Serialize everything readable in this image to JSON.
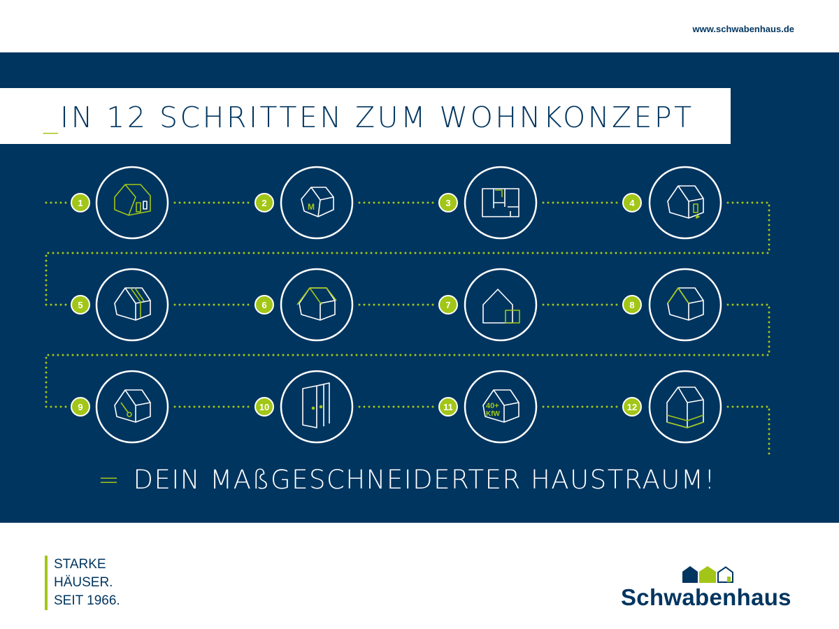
{
  "header": {
    "url": "www.schwabenhaus.de"
  },
  "title": {
    "prefix": "_",
    "text": "IN 12 SCHRITTEN ZUM WOHNKONZEPT"
  },
  "steps": [
    {
      "number": "1",
      "icon": "house-outline-green-icon"
    },
    {
      "number": "2",
      "icon": "house-m-icon",
      "label": "M"
    },
    {
      "number": "3",
      "icon": "floor-plan-icon"
    },
    {
      "number": "4",
      "icon": "house-door-icon"
    },
    {
      "number": "5",
      "icon": "house-roof-lines-icon"
    },
    {
      "number": "6",
      "icon": "house-roof-green-icon"
    },
    {
      "number": "7",
      "icon": "house-extension-icon"
    },
    {
      "number": "8",
      "icon": "house-gable-green-icon"
    },
    {
      "number": "9",
      "icon": "house-key-icon"
    },
    {
      "number": "10",
      "icon": "doors-icon"
    },
    {
      "number": "11",
      "icon": "house-kfw-icon",
      "label": "40+ KfW"
    },
    {
      "number": "12",
      "icon": "house-basement-icon"
    }
  ],
  "result": {
    "prefix": "=",
    "text": "DEIN MAßGESCHNEIDERTER HAUSTRAUM!"
  },
  "slogan": {
    "line1": "STARKE",
    "line2": "HÄUSER.",
    "line3": "SEIT 1966."
  },
  "logo": {
    "text": "Schwabenhaus"
  },
  "colors": {
    "navy": "#00355f",
    "green": "#a2c617",
    "white": "#ffffff"
  }
}
